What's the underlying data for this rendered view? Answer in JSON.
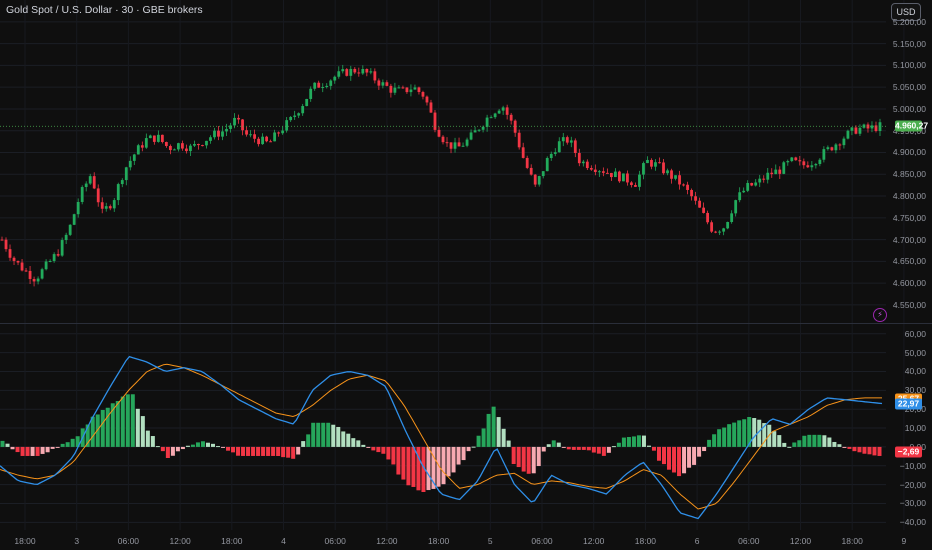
{
  "header": {
    "title": "Gold Spot / U.S. Dollar · 30 · GBE brokers",
    "currency_button": "USD"
  },
  "price_axis": {
    "ticks": [
      "5.200,00",
      "5.150,00",
      "5.100,00",
      "5.050,00",
      "5.000,00",
      "4.950,00",
      "4.900,00",
      "4.850,00",
      "4.800,00",
      "4.750,00",
      "4.700,00",
      "4.650,00",
      "4.600,00",
      "4.550,00"
    ],
    "current_price_label": "4.960,27",
    "current_price_value": 4960.27,
    "range": [
      4520,
      5218
    ]
  },
  "macd_axis": {
    "ticks": [
      "60,00",
      "50,00",
      "40,00",
      "30,00",
      "20,00",
      "10,00",
      "0,00",
      "−10,00",
      "−20,00",
      "−30,00",
      "−40,00"
    ],
    "signal_label": "25,67",
    "macd_label": "22,97",
    "hist_label": "−2,69",
    "range": [
      -43,
      62
    ]
  },
  "time_axis": {
    "labels": [
      "18:00",
      "3",
      "06:00",
      "12:00",
      "18:00",
      "4",
      "06:00",
      "12:00",
      "18:00",
      "5",
      "06:00",
      "12:00",
      "18:00",
      "6",
      "06:00",
      "12:00",
      "18:00",
      "9"
    ]
  },
  "colors": {
    "up": "#22ab5c",
    "down": "#f23645",
    "hist_up_strong": "#26a65b",
    "hist_up_weak": "#b2dfc0",
    "hist_down_strong": "#f23645",
    "hist_down_weak": "#f7a9b1",
    "macd_line": "#2f8fe8",
    "signal_line": "#f7931a",
    "price_tag": "#4caf50",
    "signal_tag": "#f7931a",
    "macd_tag": "#2f8fe8",
    "hist_tag": "#f23645"
  },
  "chart_data": {
    "type": "candlestick",
    "price_key_points": [
      [
        0,
        4700
      ],
      [
        1,
        4655
      ],
      [
        2,
        4630
      ],
      [
        3,
        4610
      ],
      [
        4,
        4640
      ],
      [
        5,
        4670
      ],
      [
        6,
        4720
      ],
      [
        7,
        4800
      ],
      [
        8,
        4850
      ],
      [
        9,
        4760
      ],
      [
        10,
        4790
      ],
      [
        11,
        4860
      ],
      [
        12,
        4900
      ],
      [
        13,
        4930
      ],
      [
        14,
        4935
      ],
      [
        15,
        4910
      ],
      [
        16,
        4920
      ],
      [
        17,
        4910
      ],
      [
        18,
        4925
      ],
      [
        19,
        4940
      ],
      [
        20,
        4950
      ],
      [
        21,
        4975
      ],
      [
        22,
        4940
      ],
      [
        23,
        4930
      ],
      [
        24,
        4920
      ],
      [
        25,
        4950
      ],
      [
        26,
        4975
      ],
      [
        27,
        5010
      ],
      [
        28,
        5050
      ],
      [
        29,
        5060
      ],
      [
        30,
        5075
      ],
      [
        31,
        5085
      ],
      [
        32,
        5090
      ],
      [
        33,
        5080
      ],
      [
        34,
        5060
      ],
      [
        35,
        5045
      ],
      [
        36,
        5040
      ],
      [
        37,
        5050
      ],
      [
        38,
        5030
      ],
      [
        39,
        4960
      ],
      [
        40,
        4920
      ],
      [
        41,
        4910
      ],
      [
        42,
        4930
      ],
      [
        43,
        4960
      ],
      [
        44,
        4990
      ],
      [
        45,
        5010
      ],
      [
        46,
        4960
      ],
      [
        47,
        4880
      ],
      [
        48,
        4820
      ],
      [
        49,
        4880
      ],
      [
        50,
        4920
      ],
      [
        51,
        4930
      ],
      [
        52,
        4880
      ],
      [
        53,
        4870
      ],
      [
        54,
        4860
      ],
      [
        55,
        4850
      ],
      [
        56,
        4840
      ],
      [
        57,
        4830
      ],
      [
        58,
        4880
      ],
      [
        59,
        4870
      ],
      [
        60,
        4850
      ],
      [
        61,
        4830
      ],
      [
        62,
        4800
      ],
      [
        63,
        4760
      ],
      [
        64,
        4720
      ],
      [
        65,
        4730
      ],
      [
        66,
        4790
      ],
      [
        67,
        4820
      ],
      [
        68,
        4830
      ],
      [
        69,
        4850
      ],
      [
        70,
        4860
      ],
      [
        71,
        4880
      ],
      [
        72,
        4870
      ],
      [
        73,
        4880
      ],
      [
        74,
        4900
      ],
      [
        75,
        4920
      ],
      [
        76,
        4940
      ],
      [
        77,
        4955
      ],
      [
        78,
        4955
      ],
      [
        79,
        4960
      ]
    ],
    "macd_key_points": [
      [
        0,
        -10
      ],
      [
        1,
        -18
      ],
      [
        2,
        -20
      ],
      [
        3,
        -15
      ],
      [
        4,
        -5
      ],
      [
        5,
        15
      ],
      [
        6,
        32
      ],
      [
        7,
        48
      ],
      [
        8,
        45
      ],
      [
        9,
        40
      ],
      [
        10,
        42
      ],
      [
        11,
        40
      ],
      [
        12,
        33
      ],
      [
        13,
        25
      ],
      [
        14,
        20
      ],
      [
        15,
        15
      ],
      [
        16,
        12
      ],
      [
        17,
        30
      ],
      [
        18,
        38
      ],
      [
        19,
        40
      ],
      [
        20,
        38
      ],
      [
        21,
        32
      ],
      [
        22,
        10
      ],
      [
        23,
        -10
      ],
      [
        24,
        -25
      ],
      [
        25,
        -28
      ],
      [
        26,
        -18
      ],
      [
        27,
        0
      ],
      [
        28,
        -20
      ],
      [
        29,
        -30
      ],
      [
        30,
        -15
      ],
      [
        31,
        -20
      ],
      [
        32,
        -22
      ],
      [
        33,
        -25
      ],
      [
        34,
        -15
      ],
      [
        35,
        -8
      ],
      [
        36,
        -20
      ],
      [
        37,
        -35
      ],
      [
        38,
        -38
      ],
      [
        39,
        -25
      ],
      [
        40,
        -10
      ],
      [
        41,
        5
      ],
      [
        42,
        15
      ],
      [
        43,
        12
      ],
      [
        44,
        20
      ],
      [
        45,
        26
      ],
      [
        46,
        25
      ],
      [
        47,
        24
      ],
      [
        48,
        23
      ]
    ],
    "signal_key_points": [
      [
        0,
        -12
      ],
      [
        1,
        -15
      ],
      [
        2,
        -17
      ],
      [
        3,
        -15
      ],
      [
        4,
        -8
      ],
      [
        5,
        5
      ],
      [
        6,
        18
      ],
      [
        7,
        30
      ],
      [
        8,
        40
      ],
      [
        9,
        44
      ],
      [
        10,
        42
      ],
      [
        11,
        38
      ],
      [
        12,
        33
      ],
      [
        13,
        28
      ],
      [
        14,
        23
      ],
      [
        15,
        18
      ],
      [
        16,
        16
      ],
      [
        17,
        22
      ],
      [
        18,
        30
      ],
      [
        19,
        36
      ],
      [
        20,
        38
      ],
      [
        21,
        35
      ],
      [
        22,
        22
      ],
      [
        23,
        5
      ],
      [
        24,
        -12
      ],
      [
        25,
        -22
      ],
      [
        26,
        -20
      ],
      [
        27,
        -15
      ],
      [
        28,
        -14
      ],
      [
        29,
        -20
      ],
      [
        30,
        -18
      ],
      [
        31,
        -19
      ],
      [
        32,
        -21
      ],
      [
        33,
        -22
      ],
      [
        34,
        -18
      ],
      [
        35,
        -12
      ],
      [
        36,
        -15
      ],
      [
        37,
        -25
      ],
      [
        38,
        -33
      ],
      [
        39,
        -30
      ],
      [
        40,
        -18
      ],
      [
        41,
        -5
      ],
      [
        42,
        8
      ],
      [
        43,
        12
      ],
      [
        44,
        16
      ],
      [
        45,
        22
      ],
      [
        46,
        25
      ],
      [
        47,
        26
      ],
      [
        48,
        26
      ]
    ]
  }
}
